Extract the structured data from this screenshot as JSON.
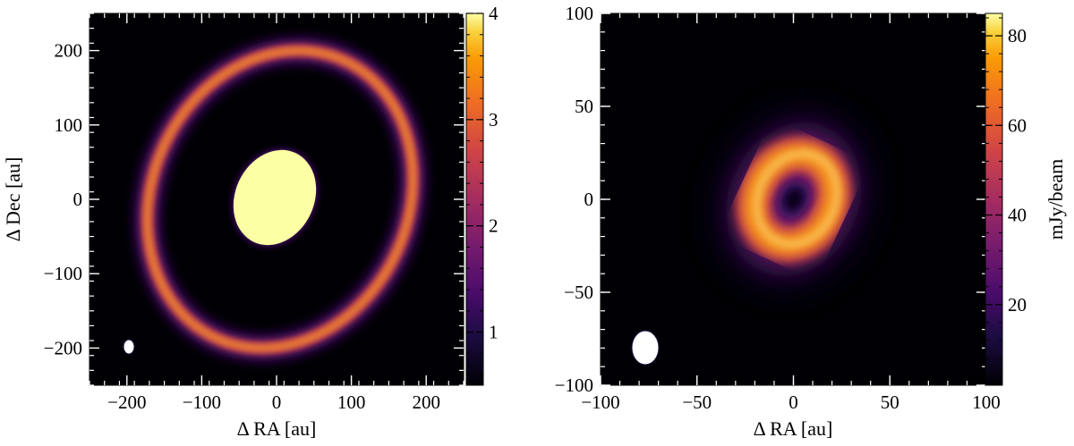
{
  "chart_data": [
    {
      "type": "heatmap",
      "xlabel": "Δ RA [au]",
      "ylabel": "Δ Dec [au]",
      "xlim": [
        -250,
        250
      ],
      "ylim": [
        -250,
        250
      ],
      "x_ticks": [
        -200,
        -100,
        0,
        100,
        200
      ],
      "y_ticks": [
        -200,
        -100,
        0,
        100,
        200
      ],
      "colorbar": {
        "label": "",
        "range": [
          0.5,
          4
        ],
        "ticks": [
          1,
          2,
          3,
          4
        ],
        "colormap": "inferno"
      },
      "features": [
        {
          "kind": "saturated-central-ellipse",
          "center": [
            -10,
            0
          ],
          "semi_axes": [
            48,
            62
          ],
          "rotation_deg": -25,
          "value": 4
        },
        {
          "kind": "ring",
          "center": [
            5,
            0
          ],
          "semi_axes": [
            170,
            205
          ],
          "rotation_deg": -25,
          "width": 15,
          "peak": 3.2
        },
        {
          "kind": "beam",
          "center": [
            -200,
            -200
          ],
          "semi_axes": [
            7,
            10
          ]
        }
      ]
    },
    {
      "type": "heatmap",
      "xlabel": "Δ RA [au]",
      "ylabel": "",
      "xlim": [
        -100,
        100
      ],
      "ylim": [
        -100,
        100
      ],
      "x_ticks": [
        -100,
        -50,
        0,
        50,
        100
      ],
      "y_ticks": [
        -100,
        -50,
        0,
        50,
        100
      ],
      "colorbar": {
        "label": "mJy/beam",
        "range": [
          2,
          85
        ],
        "ticks": [
          20,
          40,
          60,
          80
        ],
        "colormap": "inferno"
      },
      "features": [
        {
          "kind": "blurred-ring",
          "center": [
            0,
            0
          ],
          "semi_axes": [
            22,
            28
          ],
          "rotation_deg": -25,
          "width": 14,
          "peak": 84,
          "center_value": 12
        },
        {
          "kind": "beam",
          "center": [
            -80,
            -80
          ],
          "semi_axes": [
            7,
            9
          ]
        }
      ]
    }
  ]
}
